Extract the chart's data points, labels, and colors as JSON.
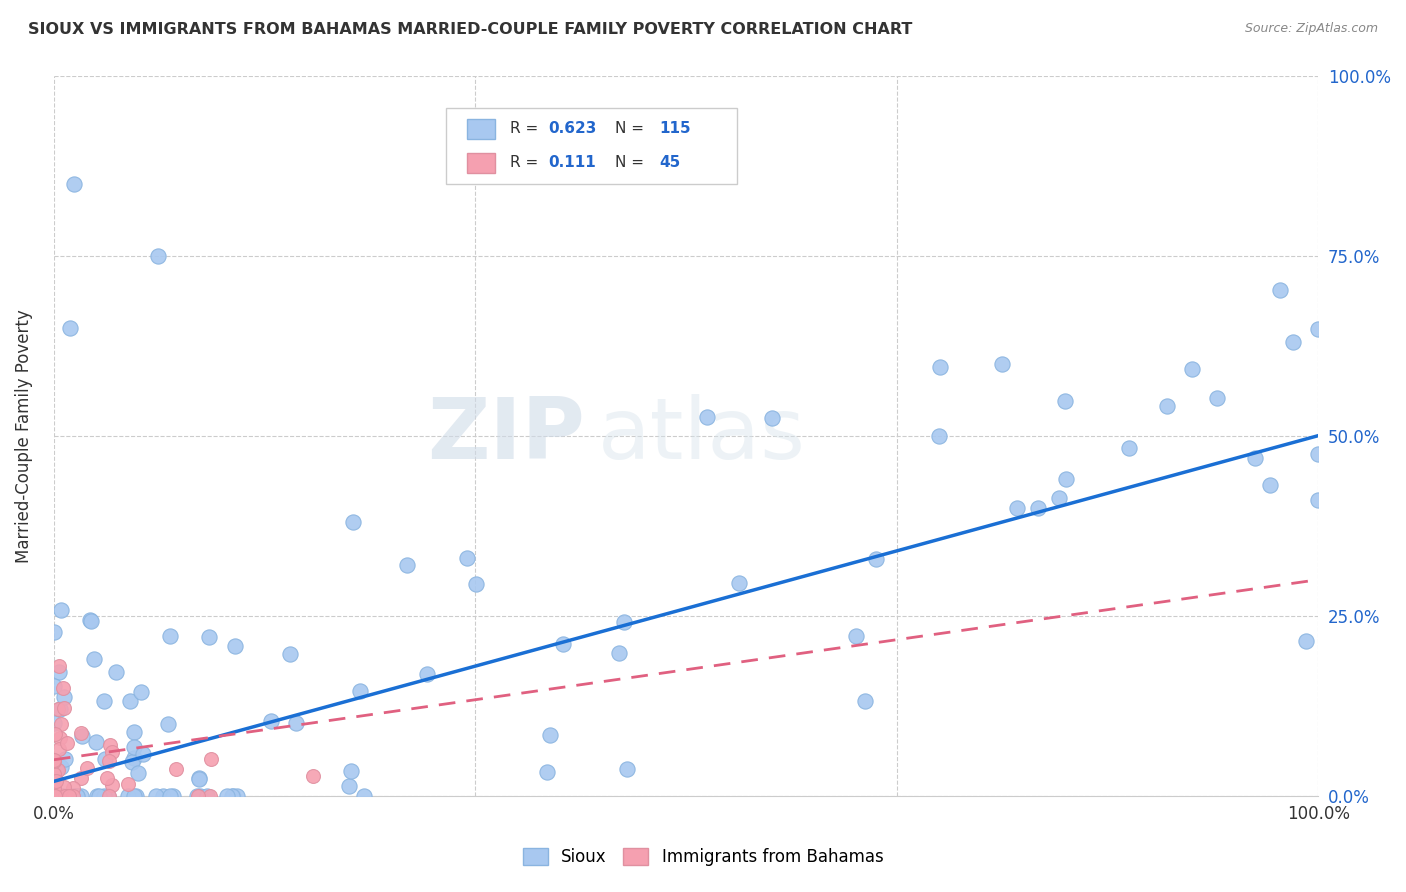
{
  "title": "SIOUX VS IMMIGRANTS FROM BAHAMAS MARRIED-COUPLE FAMILY POVERTY CORRELATION CHART",
  "source": "Source: ZipAtlas.com",
  "ylabel": "Married-Couple Family Poverty",
  "sioux_R": "0.623",
  "sioux_N": "115",
  "bahamas_R": "0.111",
  "bahamas_N": "45",
  "sioux_color": "#a8c8f0",
  "sioux_line_color": "#1a6fd4",
  "bahamas_color": "#f5a0b0",
  "bahamas_line_color": "#e06080",
  "watermark_zip": "ZIP",
  "watermark_atlas": "atlas",
  "background_color": "#ffffff",
  "grid_color": "#cccccc",
  "tick_color": "#2266cc",
  "title_color": "#333333",
  "source_color": "#888888"
}
